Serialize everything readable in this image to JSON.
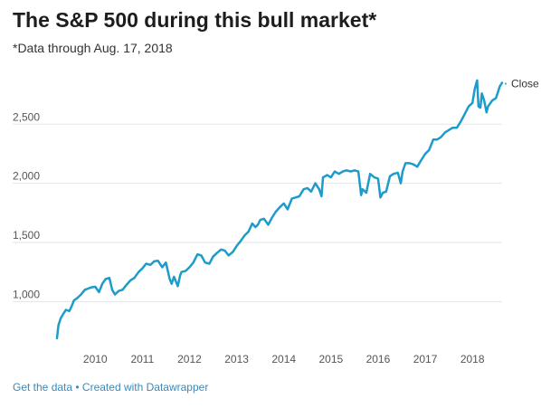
{
  "header": {
    "title": "The S&P 500 during this bull market*",
    "subtitle": "*Data through Aug. 17, 2018"
  },
  "footer": {
    "get_data": "Get the data",
    "separator": " • ",
    "created_with": "Created with Datawrapper"
  },
  "colors": {
    "line": "#1d9ccc",
    "grid": "#e5e5e5",
    "axis_text": "#555555",
    "link": "#3d88b6"
  },
  "chart_data": {
    "type": "line",
    "title": "The S&P 500 during this bull market*",
    "xlabel": "",
    "ylabel": "",
    "xlim": [
      2009.17,
      2018.63
    ],
    "ylim": [
      620,
      2900
    ],
    "grid": true,
    "yticks": [
      1000,
      1500,
      2000,
      2500
    ],
    "ytick_labels": [
      "1,000",
      "1,500",
      "2,000",
      "2,500"
    ],
    "xticks": [
      2010,
      2011,
      2012,
      2013,
      2014,
      2015,
      2016,
      2017,
      2018
    ],
    "xtick_labels": [
      "2010",
      "2011",
      "2012",
      "2013",
      "2014",
      "2015",
      "2016",
      "2017",
      "2018"
    ],
    "series": [
      {
        "name": "Close",
        "x": [
          2009.19,
          2009.22,
          2009.27,
          2009.33,
          2009.38,
          2009.45,
          2009.5,
          2009.55,
          2009.62,
          2009.7,
          2009.78,
          2009.85,
          2009.92,
          2010.0,
          2010.08,
          2010.15,
          2010.22,
          2010.3,
          2010.36,
          2010.42,
          2010.5,
          2010.58,
          2010.66,
          2010.75,
          2010.83,
          2010.92,
          2011.0,
          2011.08,
          2011.17,
          2011.25,
          2011.33,
          2011.42,
          2011.5,
          2011.58,
          2011.62,
          2011.67,
          2011.75,
          2011.8,
          2011.83,
          2011.92,
          2012.0,
          2012.08,
          2012.17,
          2012.25,
          2012.33,
          2012.42,
          2012.5,
          2012.58,
          2012.67,
          2012.75,
          2012.83,
          2012.92,
          2013.0,
          2013.08,
          2013.17,
          2013.25,
          2013.33,
          2013.4,
          2013.45,
          2013.5,
          2013.58,
          2013.67,
          2013.75,
          2013.83,
          2013.92,
          2014.0,
          2014.08,
          2014.17,
          2014.25,
          2014.33,
          2014.42,
          2014.5,
          2014.58,
          2014.67,
          2014.75,
          2014.8,
          2014.83,
          2014.92,
          2015.0,
          2015.08,
          2015.17,
          2015.25,
          2015.33,
          2015.42,
          2015.5,
          2015.58,
          2015.64,
          2015.67,
          2015.75,
          2015.83,
          2015.92,
          2016.0,
          2016.05,
          2016.1,
          2016.17,
          2016.25,
          2016.33,
          2016.42,
          2016.48,
          2016.52,
          2016.58,
          2016.67,
          2016.75,
          2016.83,
          2016.92,
          2017.0,
          2017.08,
          2017.17,
          2017.25,
          2017.33,
          2017.42,
          2017.5,
          2017.58,
          2017.67,
          2017.75,
          2017.83,
          2017.92,
          2018.0,
          2018.05,
          2018.1,
          2018.13,
          2018.17,
          2018.2,
          2018.25,
          2018.3,
          2018.33,
          2018.42,
          2018.5,
          2018.55,
          2018.58,
          2018.63
        ],
        "y": [
          690,
          800,
          860,
          900,
          930,
          920,
          960,
          1010,
          1030,
          1060,
          1100,
          1110,
          1120,
          1125,
          1080,
          1150,
          1190,
          1200,
          1100,
          1060,
          1090,
          1100,
          1140,
          1180,
          1200,
          1250,
          1280,
          1320,
          1310,
          1340,
          1345,
          1290,
          1330,
          1190,
          1150,
          1210,
          1130,
          1220,
          1250,
          1260,
          1290,
          1330,
          1400,
          1390,
          1330,
          1320,
          1380,
          1410,
          1440,
          1430,
          1390,
          1420,
          1470,
          1510,
          1560,
          1590,
          1660,
          1630,
          1650,
          1690,
          1700,
          1650,
          1710,
          1760,
          1800,
          1830,
          1780,
          1870,
          1880,
          1890,
          1950,
          1960,
          1930,
          2000,
          1950,
          1890,
          2050,
          2070,
          2050,
          2100,
          2080,
          2100,
          2110,
          2100,
          2110,
          2100,
          1900,
          1950,
          1920,
          2080,
          2050,
          2040,
          1880,
          1920,
          1930,
          2060,
          2080,
          2090,
          2000,
          2100,
          2170,
          2170,
          2160,
          2140,
          2200,
          2250,
          2280,
          2370,
          2370,
          2390,
          2430,
          2450,
          2470,
          2470,
          2520,
          2580,
          2650,
          2680,
          2800,
          2870,
          2650,
          2640,
          2760,
          2700,
          2600,
          2650,
          2700,
          2720,
          2780,
          2820,
          2850
        ]
      }
    ]
  }
}
